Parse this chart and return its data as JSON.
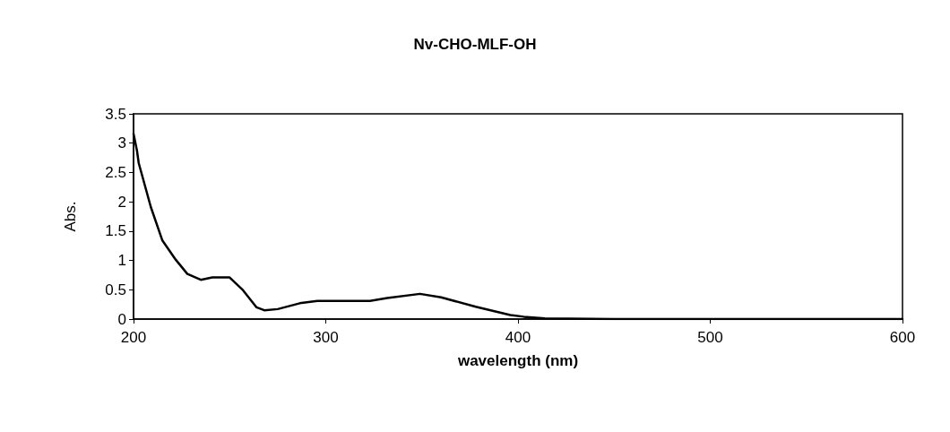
{
  "chart_data": {
    "type": "line",
    "title": "Nv-CHO-MLF-OH",
    "xlabel": "wavelength (nm)",
    "ylabel": "Abs.",
    "xlim": [
      200,
      600
    ],
    "xticks": [
      200,
      300,
      400,
      500,
      600
    ],
    "ylim": [
      0,
      3.5
    ],
    "yticks": [
      0,
      0.5,
      1,
      1.5,
      2,
      2.5,
      3,
      3.5
    ],
    "grid": false,
    "marker": "none",
    "line_style": "solid",
    "series": [
      {
        "color": "#000000",
        "x": [
          200,
          201.8,
          202.7,
          209,
          215,
          222,
          228,
          235,
          241,
          250,
          257,
          264,
          268,
          275,
          286.5,
          295.6,
          323,
          332,
          349,
          360,
          378,
          396,
          403,
          414,
          450,
          500,
          550,
          600
        ],
        "values": [
          3.16,
          2.87,
          2.66,
          1.91,
          1.34,
          1.01,
          0.77,
          0.67,
          0.71,
          0.71,
          0.49,
          0.2,
          0.15,
          0.17,
          0.27,
          0.31,
          0.31,
          0.36,
          0.43,
          0.37,
          0.21,
          0.07,
          0.04,
          0.01,
          0,
          0,
          0,
          0
        ]
      }
    ]
  }
}
